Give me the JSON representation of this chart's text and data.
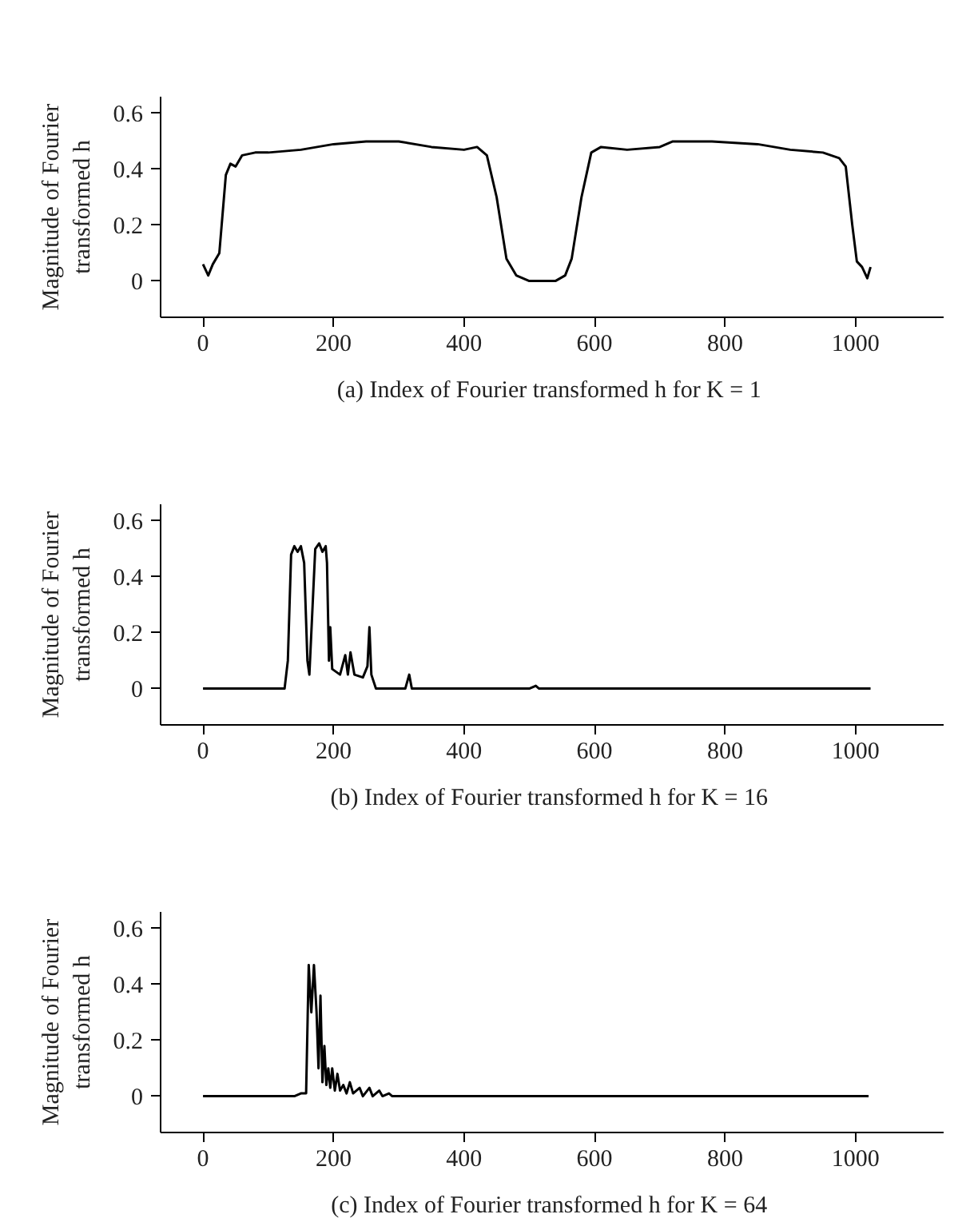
{
  "chart_data": [
    {
      "type": "line",
      "xlabel": "(a)  Index of Fourier transformed h for K = 1",
      "ylabel": "Magnitude of Fourier\ntransformed h",
      "xlim": [
        -65,
        1135
      ],
      "ylim": [
        -0.13,
        0.66
      ],
      "xticks": [
        0,
        200,
        400,
        600,
        800,
        1000
      ],
      "yticks": [
        0,
        0.2,
        0.4,
        0.6
      ],
      "grid": false,
      "series": [
        {
          "color": "#000000",
          "x": [
            0,
            8,
            15,
            25,
            35,
            42,
            50,
            60,
            80,
            100,
            150,
            200,
            250,
            300,
            350,
            400,
            420,
            435,
            450,
            465,
            480,
            500,
            540,
            555,
            565,
            580,
            595,
            610,
            650,
            700,
            720,
            780,
            850,
            900,
            950,
            975,
            985,
            995,
            1002,
            1010,
            1018,
            1023
          ],
          "values": [
            0.06,
            0.02,
            0.06,
            0.1,
            0.38,
            0.42,
            0.41,
            0.45,
            0.46,
            0.46,
            0.47,
            0.49,
            0.5,
            0.5,
            0.48,
            0.47,
            0.48,
            0.45,
            0.3,
            0.08,
            0.02,
            0.0,
            0.0,
            0.02,
            0.08,
            0.3,
            0.46,
            0.48,
            0.47,
            0.48,
            0.5,
            0.5,
            0.49,
            0.47,
            0.46,
            0.44,
            0.41,
            0.2,
            0.07,
            0.05,
            0.01,
            0.05
          ]
        }
      ]
    },
    {
      "type": "line",
      "xlabel": "(b)  Index of Fourier transformed h for K = 16",
      "ylabel": "Magnitude of Fourier\ntransformed h",
      "xlim": [
        -65,
        1135
      ],
      "ylim": [
        -0.13,
        0.66
      ],
      "xticks": [
        0,
        200,
        400,
        600,
        800,
        1000
      ],
      "yticks": [
        0,
        0.2,
        0.4,
        0.6
      ],
      "grid": false,
      "series": [
        {
          "color": "#000000",
          "x": [
            0,
            125,
            130,
            135,
            140,
            145,
            150,
            155,
            160,
            163,
            168,
            172,
            178,
            183,
            188,
            190,
            193,
            195,
            198,
            210,
            218,
            222,
            226,
            232,
            245,
            252,
            255,
            258,
            265,
            310,
            316,
            320,
            500,
            510,
            515,
            1023
          ],
          "values": [
            0,
            0,
            0.1,
            0.48,
            0.51,
            0.49,
            0.51,
            0.45,
            0.1,
            0.05,
            0.3,
            0.5,
            0.52,
            0.49,
            0.51,
            0.45,
            0.1,
            0.22,
            0.07,
            0.05,
            0.12,
            0.05,
            0.13,
            0.05,
            0.04,
            0.08,
            0.22,
            0.05,
            0,
            0,
            0.05,
            0,
            0,
            0.01,
            0,
            0
          ]
        }
      ]
    },
    {
      "type": "line",
      "xlabel": "(c)  Index of Fourier transformed h for K = 64",
      "ylabel": "Magnitude of Fourier\ntransformed h",
      "xlim": [
        -65,
        1135
      ],
      "ylim": [
        -0.13,
        0.66
      ],
      "xticks": [
        0,
        200,
        400,
        600,
        800,
        1000
      ],
      "yticks": [
        0,
        0.2,
        0.4,
        0.6
      ],
      "grid": false,
      "series": [
        {
          "color": "#000000",
          "x": [
            0,
            140,
            150,
            158,
            162,
            166,
            170,
            174,
            177,
            180,
            183,
            186,
            189,
            192,
            195,
            198,
            202,
            206,
            210,
            215,
            220,
            225,
            230,
            240,
            245,
            255,
            260,
            270,
            275,
            285,
            290,
            1020
          ],
          "values": [
            0,
            0,
            0.01,
            0.01,
            0.47,
            0.3,
            0.47,
            0.3,
            0.1,
            0.36,
            0.05,
            0.18,
            0.04,
            0.1,
            0.03,
            0.1,
            0.02,
            0.08,
            0.02,
            0.04,
            0.01,
            0.05,
            0.01,
            0.03,
            0,
            0.03,
            0,
            0.02,
            0,
            0.01,
            0,
            0
          ]
        }
      ]
    }
  ]
}
